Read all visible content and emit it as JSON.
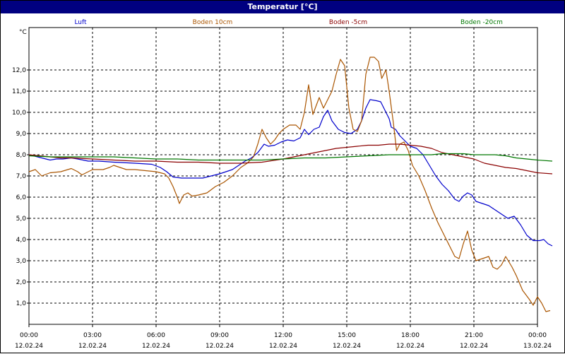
{
  "window": {
    "title": "Temperatur [°C]"
  },
  "chart_data": {
    "type": "line",
    "title": "Temperatur [°C]",
    "ylabel": "°C",
    "xlabel": "",
    "ylim": [
      0,
      14
    ],
    "xlim": [
      0,
      24
    ],
    "grid": true,
    "legend_placement": "top",
    "y_ticks": [
      {
        "value": 1,
        "label": "1,0"
      },
      {
        "value": 2,
        "label": "2,0"
      },
      {
        "value": 3,
        "label": "3,0"
      },
      {
        "value": 4,
        "label": "4,0"
      },
      {
        "value": 5,
        "label": "5,0"
      },
      {
        "value": 6,
        "label": "6,0"
      },
      {
        "value": 7,
        "label": "7,0"
      },
      {
        "value": 8,
        "label": "8,0"
      },
      {
        "value": 9,
        "label": "9,0"
      },
      {
        "value": 10,
        "label": "10,0"
      },
      {
        "value": 11,
        "label": "11,0"
      },
      {
        "value": 12,
        "label": "12,0"
      }
    ],
    "x_ticks": [
      {
        "value": 0,
        "time": "00:00",
        "date": "12.02.24"
      },
      {
        "value": 3,
        "time": "03:00",
        "date": "12.02.24"
      },
      {
        "value": 6,
        "time": "06:00",
        "date": "12.02.24"
      },
      {
        "value": 9,
        "time": "09:00",
        "date": "12.02.24"
      },
      {
        "value": 12,
        "time": "12:00",
        "date": "12.02.24"
      },
      {
        "value": 15,
        "time": "15:00",
        "date": "12.02.24"
      },
      {
        "value": 18,
        "time": "18:00",
        "date": "12.02.24"
      },
      {
        "value": 21,
        "time": "21:00",
        "date": "12.02.24"
      },
      {
        "value": 24,
        "time": "00:00",
        "date": "13.02.24"
      }
    ],
    "series": [
      {
        "name": "Luft",
        "color": "#0000cc",
        "points": [
          [
            0,
            8.0
          ],
          [
            0.4,
            7.9
          ],
          [
            0.8,
            7.8
          ],
          [
            1.0,
            7.75
          ],
          [
            1.3,
            7.8
          ],
          [
            1.6,
            7.8
          ],
          [
            2.0,
            7.85
          ],
          [
            2.3,
            7.8
          ],
          [
            2.8,
            7.7
          ],
          [
            3.3,
            7.7
          ],
          [
            4.0,
            7.65
          ],
          [
            5.0,
            7.6
          ],
          [
            5.8,
            7.55
          ],
          [
            6.2,
            7.4
          ],
          [
            6.5,
            7.2
          ],
          [
            6.8,
            6.95
          ],
          [
            7.2,
            6.9
          ],
          [
            8.2,
            6.9
          ],
          [
            8.6,
            7.0
          ],
          [
            9.0,
            7.1
          ],
          [
            9.3,
            7.2
          ],
          [
            9.6,
            7.3
          ],
          [
            9.9,
            7.5
          ],
          [
            10.2,
            7.7
          ],
          [
            10.5,
            7.85
          ],
          [
            10.8,
            8.1
          ],
          [
            11.1,
            8.5
          ],
          [
            11.3,
            8.4
          ],
          [
            11.6,
            8.45
          ],
          [
            11.9,
            8.6
          ],
          [
            12.2,
            8.7
          ],
          [
            12.5,
            8.65
          ],
          [
            12.8,
            8.8
          ],
          [
            13.0,
            9.2
          ],
          [
            13.2,
            8.95
          ],
          [
            13.45,
            9.2
          ],
          [
            13.7,
            9.3
          ],
          [
            13.9,
            9.8
          ],
          [
            14.1,
            10.1
          ],
          [
            14.3,
            9.6
          ],
          [
            14.6,
            9.2
          ],
          [
            14.9,
            9.05
          ],
          [
            15.2,
            9.0
          ],
          [
            15.5,
            9.2
          ],
          [
            15.7,
            9.6
          ],
          [
            15.9,
            10.2
          ],
          [
            16.1,
            10.6
          ],
          [
            16.4,
            10.55
          ],
          [
            16.6,
            10.5
          ],
          [
            16.8,
            10.1
          ],
          [
            17.0,
            9.7
          ],
          [
            17.1,
            9.3
          ],
          [
            17.3,
            9.2
          ],
          [
            17.5,
            8.9
          ],
          [
            17.8,
            8.6
          ],
          [
            18.0,
            8.4
          ],
          [
            18.3,
            8.3
          ],
          [
            18.6,
            8.0
          ],
          [
            18.9,
            7.5
          ],
          [
            19.2,
            7.0
          ],
          [
            19.5,
            6.6
          ],
          [
            19.8,
            6.3
          ],
          [
            20.1,
            5.9
          ],
          [
            20.3,
            5.8
          ],
          [
            20.5,
            6.05
          ],
          [
            20.7,
            6.2
          ],
          [
            20.9,
            6.1
          ],
          [
            21.1,
            5.8
          ],
          [
            21.4,
            5.7
          ],
          [
            21.7,
            5.6
          ],
          [
            22.0,
            5.4
          ],
          [
            22.3,
            5.2
          ],
          [
            22.6,
            5.0
          ],
          [
            22.9,
            5.1
          ],
          [
            23.2,
            4.7
          ],
          [
            23.5,
            4.2
          ],
          [
            23.8,
            3.95
          ],
          [
            24.1,
            3.95
          ],
          [
            24.3,
            4.0
          ],
          [
            24.5,
            3.8
          ],
          [
            24.7,
            3.7
          ]
        ]
      },
      {
        "name": "Boden 10cm",
        "color": "#aa5500",
        "points": [
          [
            0,
            7.2
          ],
          [
            0.3,
            7.3
          ],
          [
            0.6,
            7.0
          ],
          [
            1.0,
            7.15
          ],
          [
            1.5,
            7.2
          ],
          [
            2.0,
            7.35
          ],
          [
            2.3,
            7.2
          ],
          [
            2.5,
            7.05
          ],
          [
            3.0,
            7.3
          ],
          [
            3.5,
            7.3
          ],
          [
            3.8,
            7.4
          ],
          [
            4.0,
            7.5
          ],
          [
            4.3,
            7.4
          ],
          [
            4.6,
            7.3
          ],
          [
            5.0,
            7.3
          ],
          [
            6.0,
            7.2
          ],
          [
            6.4,
            7.1
          ],
          [
            6.6,
            6.9
          ],
          [
            6.8,
            6.5
          ],
          [
            7.0,
            6.0
          ],
          [
            7.1,
            5.7
          ],
          [
            7.3,
            6.1
          ],
          [
            7.5,
            6.2
          ],
          [
            7.7,
            6.05
          ],
          [
            8.0,
            6.1
          ],
          [
            8.4,
            6.2
          ],
          [
            8.8,
            6.5
          ],
          [
            9.2,
            6.7
          ],
          [
            9.6,
            7.0
          ],
          [
            10.0,
            7.4
          ],
          [
            10.3,
            7.6
          ],
          [
            10.6,
            7.9
          ],
          [
            10.8,
            8.5
          ],
          [
            11.0,
            9.2
          ],
          [
            11.2,
            8.8
          ],
          [
            11.4,
            8.5
          ],
          [
            11.6,
            8.7
          ],
          [
            11.8,
            9.0
          ],
          [
            12.0,
            9.2
          ],
          [
            12.3,
            9.4
          ],
          [
            12.6,
            9.4
          ],
          [
            12.8,
            9.2
          ],
          [
            13.0,
            10.0
          ],
          [
            13.2,
            11.3
          ],
          [
            13.4,
            9.9
          ],
          [
            13.7,
            10.7
          ],
          [
            13.9,
            10.2
          ],
          [
            14.1,
            10.6
          ],
          [
            14.3,
            11.0
          ],
          [
            14.5,
            11.8
          ],
          [
            14.7,
            12.5
          ],
          [
            14.9,
            12.2
          ],
          [
            15.1,
            10.2
          ],
          [
            15.3,
            9.2
          ],
          [
            15.5,
            9.1
          ],
          [
            15.7,
            9.6
          ],
          [
            15.9,
            11.8
          ],
          [
            16.1,
            12.6
          ],
          [
            16.3,
            12.6
          ],
          [
            16.5,
            12.4
          ],
          [
            16.65,
            11.6
          ],
          [
            16.85,
            12.0
          ],
          [
            17.0,
            11.0
          ],
          [
            17.2,
            9.5
          ],
          [
            17.35,
            8.2
          ],
          [
            17.5,
            8.5
          ],
          [
            17.7,
            8.6
          ],
          [
            17.9,
            8.2
          ],
          [
            18.1,
            7.5
          ],
          [
            18.4,
            7.0
          ],
          [
            18.7,
            6.3
          ],
          [
            19.0,
            5.5
          ],
          [
            19.3,
            4.8
          ],
          [
            19.6,
            4.2
          ],
          [
            19.9,
            3.6
          ],
          [
            20.1,
            3.2
          ],
          [
            20.3,
            3.1
          ],
          [
            20.5,
            3.8
          ],
          [
            20.7,
            4.4
          ],
          [
            20.9,
            3.5
          ],
          [
            21.1,
            3.0
          ],
          [
            21.4,
            3.1
          ],
          [
            21.7,
            3.2
          ],
          [
            21.9,
            2.7
          ],
          [
            22.1,
            2.6
          ],
          [
            22.3,
            2.8
          ],
          [
            22.5,
            3.2
          ],
          [
            22.8,
            2.7
          ],
          [
            23.0,
            2.3
          ],
          [
            23.3,
            1.6
          ],
          [
            23.6,
            1.2
          ],
          [
            23.8,
            0.9
          ],
          [
            24.0,
            1.3
          ],
          [
            24.2,
            1.0
          ],
          [
            24.4,
            0.6
          ],
          [
            24.6,
            0.65
          ]
        ]
      },
      {
        "name": "Boden -5cm",
        "color": "#8b0000",
        "points": [
          [
            0,
            8.0
          ],
          [
            0.5,
            7.95
          ],
          [
            1.0,
            7.9
          ],
          [
            1.5,
            7.85
          ],
          [
            2.0,
            7.85
          ],
          [
            3.0,
            7.8
          ],
          [
            4.0,
            7.75
          ],
          [
            5.0,
            7.7
          ],
          [
            6.0,
            7.7
          ],
          [
            7.0,
            7.65
          ],
          [
            8.0,
            7.65
          ],
          [
            9.0,
            7.6
          ],
          [
            10.0,
            7.6
          ],
          [
            11.0,
            7.65
          ],
          [
            12.0,
            7.8
          ],
          [
            13.0,
            8.0
          ],
          [
            14.0,
            8.2
          ],
          [
            14.5,
            8.3
          ],
          [
            15.0,
            8.35
          ],
          [
            15.5,
            8.4
          ],
          [
            16.0,
            8.45
          ],
          [
            16.5,
            8.45
          ],
          [
            17.0,
            8.5
          ],
          [
            17.5,
            8.5
          ],
          [
            18.0,
            8.45
          ],
          [
            18.5,
            8.4
          ],
          [
            19.0,
            8.3
          ],
          [
            19.5,
            8.1
          ],
          [
            20.0,
            8.0
          ],
          [
            20.5,
            7.9
          ],
          [
            21.0,
            7.8
          ],
          [
            21.5,
            7.6
          ],
          [
            22.0,
            7.5
          ],
          [
            22.5,
            7.4
          ],
          [
            23.0,
            7.35
          ],
          [
            23.5,
            7.25
          ],
          [
            24.0,
            7.15
          ],
          [
            24.7,
            7.1
          ]
        ]
      },
      {
        "name": "Boden -20cm",
        "color": "#007700",
        "points": [
          [
            0,
            7.95
          ],
          [
            1.0,
            7.9
          ],
          [
            2.0,
            7.9
          ],
          [
            3.0,
            7.9
          ],
          [
            4.0,
            7.9
          ],
          [
            5.0,
            7.85
          ],
          [
            6.0,
            7.8
          ],
          [
            7.0,
            7.8
          ],
          [
            8.0,
            7.75
          ],
          [
            9.0,
            7.75
          ],
          [
            10.0,
            7.75
          ],
          [
            11.0,
            7.75
          ],
          [
            12.0,
            7.8
          ],
          [
            13.0,
            7.85
          ],
          [
            14.0,
            7.85
          ],
          [
            15.0,
            7.9
          ],
          [
            16.0,
            7.95
          ],
          [
            17.0,
            8.0
          ],
          [
            18.0,
            8.0
          ],
          [
            19.0,
            8.0
          ],
          [
            19.5,
            8.05
          ],
          [
            20.0,
            8.05
          ],
          [
            20.5,
            8.05
          ],
          [
            21.0,
            8.0
          ],
          [
            22.0,
            8.0
          ],
          [
            22.5,
            7.95
          ],
          [
            23.0,
            7.85
          ],
          [
            23.5,
            7.8
          ],
          [
            24.0,
            7.75
          ],
          [
            24.7,
            7.7
          ]
        ]
      }
    ]
  }
}
